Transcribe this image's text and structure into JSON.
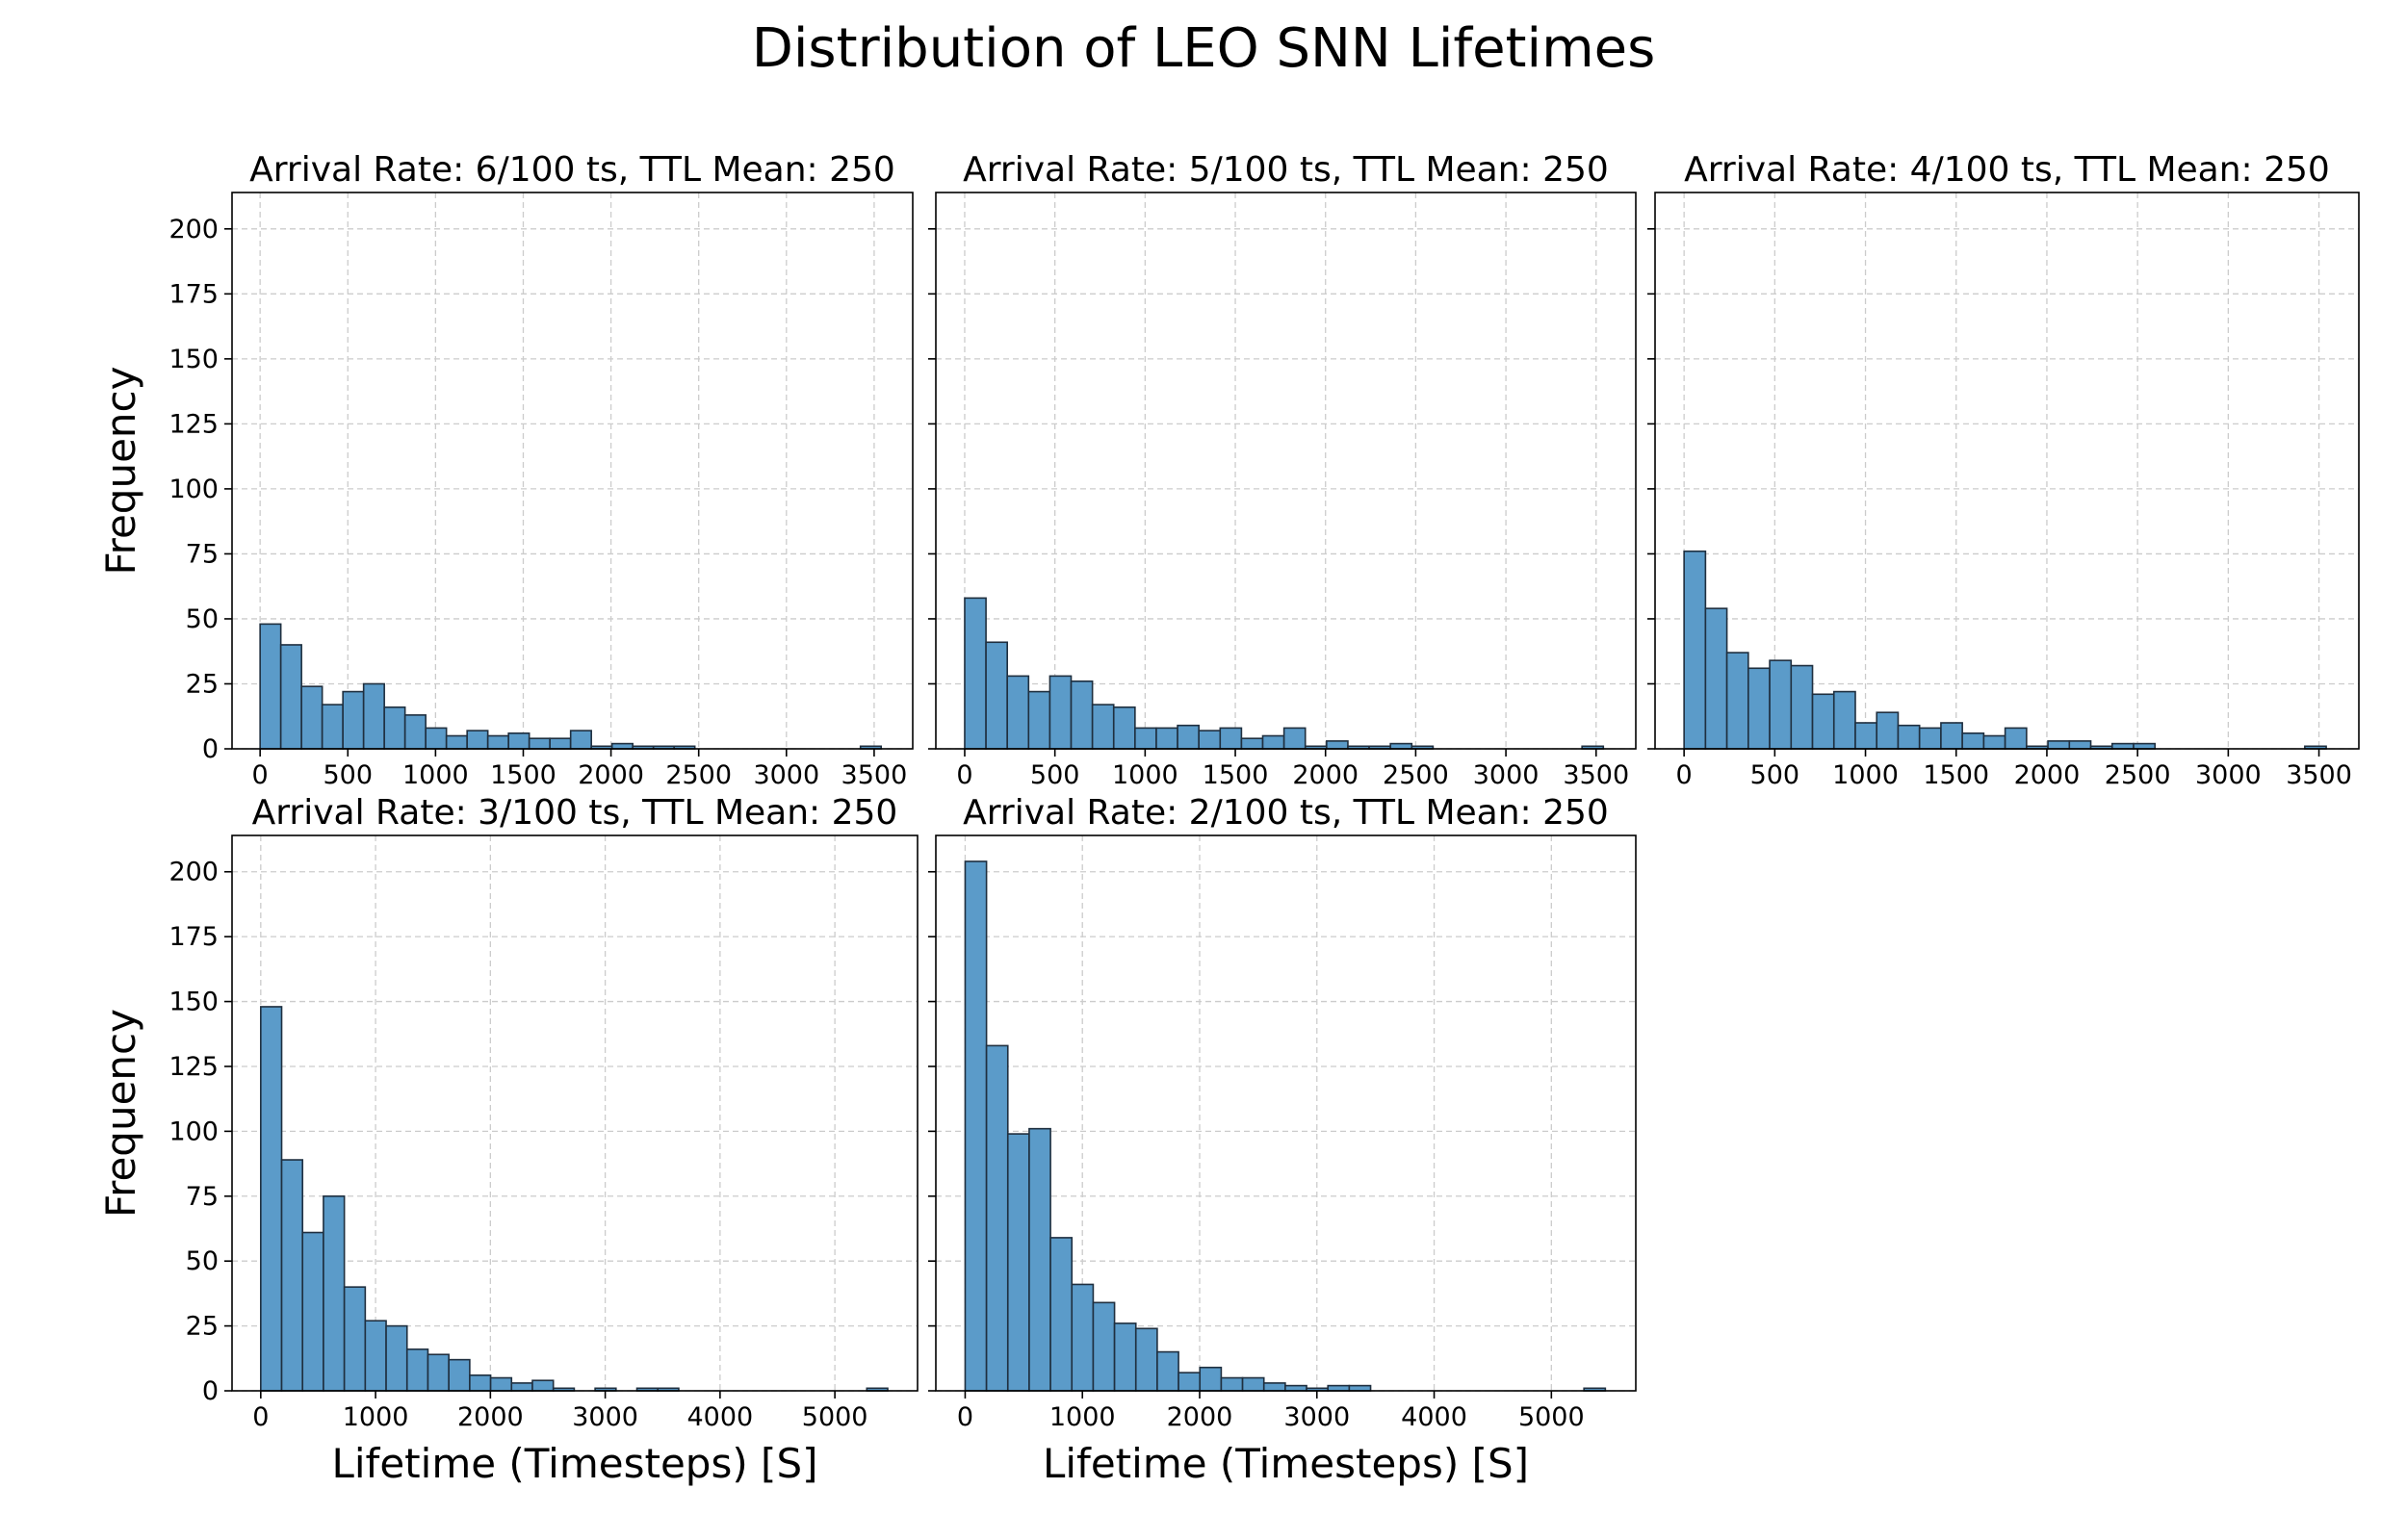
{
  "title": "Distribution of LEO SNN Lifetimes",
  "style": {
    "bar_fill": "#5b9bc9",
    "bar_edge": "#1f2f3f",
    "grid": "#cccccc"
  },
  "chart_data": [
    {
      "type": "bar",
      "title": "Arrival Rate: 6/100 ts, TTL Mean: 250",
      "xlabel": "",
      "ylabel": "Frequency",
      "xlim": [
        -160,
        3720
      ],
      "ylim": [
        0,
        214
      ],
      "xticks": [
        0,
        500,
        1000,
        1500,
        2000,
        2500,
        3000,
        3500
      ],
      "yticks": [
        0,
        25,
        50,
        75,
        100,
        125,
        150,
        175,
        200
      ],
      "bin_start": 0,
      "bin_width": 118,
      "values": [
        48,
        40,
        24,
        17,
        22,
        25,
        16,
        13,
        8,
        5,
        7,
        5,
        6,
        4,
        4,
        7,
        1,
        2,
        1,
        1,
        1,
        0,
        0,
        0,
        0,
        0,
        0,
        0,
        0,
        1
      ]
    },
    {
      "type": "bar",
      "title": "Arrival Rate: 5/100 ts, TTL Mean: 250",
      "xlabel": "",
      "ylabel": "",
      "xlim": [
        -160,
        3720
      ],
      "ylim": [
        0,
        214
      ],
      "xticks": [
        0,
        500,
        1000,
        1500,
        2000,
        2500,
        3000,
        3500
      ],
      "yticks": [
        0,
        25,
        50,
        75,
        100,
        125,
        150,
        175,
        200
      ],
      "bin_start": 0,
      "bin_width": 118,
      "values": [
        58,
        41,
        28,
        22,
        28,
        26,
        17,
        16,
        8,
        8,
        9,
        7,
        8,
        4,
        5,
        8,
        1,
        3,
        1,
        1,
        2,
        1,
        0,
        0,
        0,
        0,
        0,
        0,
        0,
        1
      ]
    },
    {
      "type": "bar",
      "title": "Arrival Rate: 4/100 ts, TTL Mean: 250",
      "xlabel": "",
      "ylabel": "",
      "xlim": [
        -160,
        3720
      ],
      "ylim": [
        0,
        214
      ],
      "xticks": [
        0,
        500,
        1000,
        1500,
        2000,
        2500,
        3000,
        3500
      ],
      "yticks": [
        0,
        25,
        50,
        75,
        100,
        125,
        150,
        175,
        200
      ],
      "bin_start": 0,
      "bin_width": 118,
      "values": [
        76,
        54,
        37,
        31,
        34,
        32,
        21,
        22,
        10,
        14,
        9,
        8,
        10,
        6,
        5,
        8,
        1,
        3,
        3,
        1,
        2,
        2,
        0,
        0,
        0,
        0,
        0,
        0,
        0,
        1
      ]
    },
    {
      "type": "bar",
      "title": "Arrival Rate: 3/100 ts, TTL Mean: 250",
      "xlabel": "Lifetime (Timesteps) [S]",
      "ylabel": "Frequency",
      "xlim": [
        -250,
        5720
      ],
      "ylim": [
        0,
        214
      ],
      "xticks": [
        0,
        1000,
        2000,
        3000,
        4000,
        5000
      ],
      "yticks": [
        0,
        25,
        50,
        75,
        100,
        125,
        150,
        175,
        200
      ],
      "bin_start": 0,
      "bin_width": 182,
      "values": [
        148,
        89,
        61,
        75,
        40,
        27,
        25,
        16,
        14,
        12,
        6,
        5,
        3,
        4,
        1,
        0,
        1,
        0,
        1,
        1,
        0,
        0,
        0,
        0,
        0,
        0,
        0,
        0,
        0,
        1
      ]
    },
    {
      "type": "bar",
      "title": "Arrival Rate: 2/100 ts, TTL Mean: 250",
      "xlabel": "Lifetime (Timesteps) [S]",
      "ylabel": "",
      "xlim": [
        -250,
        5720
      ],
      "ylim": [
        0,
        214
      ],
      "xticks": [
        0,
        1000,
        2000,
        3000,
        4000,
        5000
      ],
      "yticks": [
        0,
        25,
        50,
        75,
        100,
        125,
        150,
        175,
        200
      ],
      "bin_start": 0,
      "bin_width": 182,
      "values": [
        204,
        133,
        99,
        101,
        59,
        41,
        34,
        26,
        24,
        15,
        7,
        9,
        5,
        5,
        3,
        2,
        1,
        2,
        2,
        0,
        0,
        0,
        0,
        0,
        0,
        0,
        0,
        0,
        0,
        1
      ]
    }
  ]
}
